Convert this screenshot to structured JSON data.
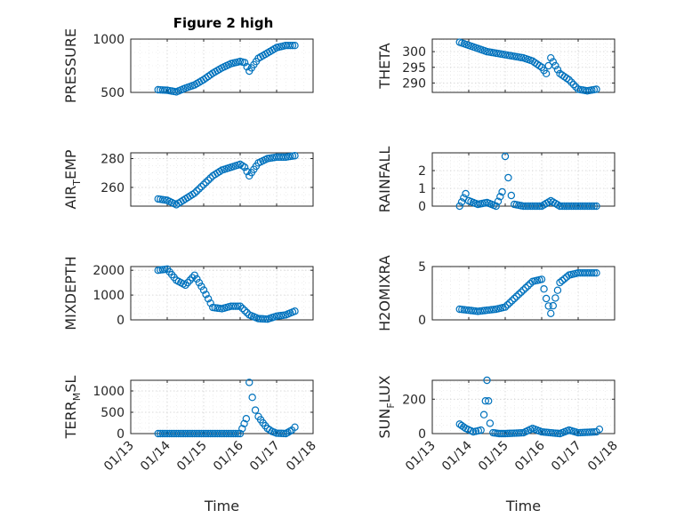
{
  "figure": {
    "title": "Figure 2 high"
  },
  "colors": {
    "marker": "#0072BD",
    "axis": "#262626",
    "grid": "#d0d0d0"
  },
  "chart_data": [
    {
      "type": "scatter",
      "ylabel_parts": [
        "PRESSURE"
      ],
      "xlabel": "",
      "xlim": [
        "01/13",
        "01/18"
      ],
      "ylim": [
        500,
        1000
      ],
      "yticks": [
        500,
        1000
      ],
      "ytick_labels": [
        "500",
        "1000"
      ],
      "x_ticks": [
        "01/13",
        "01/14",
        "01/15",
        "01/16",
        "01/17",
        "01/18"
      ],
      "show_x_labels": false,
      "grid": true,
      "series": [
        {
          "x": [
            "01/13 18:00",
            "01/14 00:00",
            "01/14 06:00",
            "01/14 12:00",
            "01/14 18:00",
            "01/15 00:00",
            "01/15 06:00",
            "01/15 12:00",
            "01/15 18:00",
            "01/16 00:00",
            "01/16 03:00",
            "01/16 06:00",
            "01/16 12:00",
            "01/16 18:00",
            "01/17 00:00",
            "01/17 06:00",
            "01/17 12:00"
          ],
          "y": [
            525,
            520,
            505,
            540,
            570,
            620,
            680,
            730,
            770,
            790,
            780,
            700,
            820,
            870,
            920,
            940,
            940
          ]
        }
      ]
    },
    {
      "type": "scatter",
      "ylabel_parts": [
        "THETA"
      ],
      "xlabel": "",
      "xlim": [
        "01/13",
        "01/18"
      ],
      "ylim": [
        287,
        304
      ],
      "yticks": [
        290,
        295,
        300
      ],
      "ytick_labels": [
        "290",
        "295",
        "300"
      ],
      "x_ticks": [
        "01/13",
        "01/14",
        "01/15",
        "01/16",
        "01/17",
        "01/18"
      ],
      "show_x_labels": false,
      "grid": true,
      "series": [
        {
          "x": [
            "01/13 18:00",
            "01/14 00:00",
            "01/14 06:00",
            "01/14 12:00",
            "01/14 18:00",
            "01/15 00:00",
            "01/15 06:00",
            "01/15 12:00",
            "01/15 18:00",
            "01/16 00:00",
            "01/16 03:00",
            "01/16 06:00",
            "01/16 12:00",
            "01/16 18:00",
            "01/17 00:00",
            "01/17 06:00",
            "01/17 12:00"
          ],
          "y": [
            303,
            302,
            301,
            300,
            299.5,
            299,
            298.5,
            298,
            297,
            295,
            293,
            298,
            293,
            291,
            288,
            287.5,
            288
          ]
        }
      ]
    },
    {
      "type": "scatter",
      "ylabel_parts": [
        "AIR",
        "T",
        "EMP"
      ],
      "xlabel": "",
      "xlim": [
        "01/13",
        "01/18"
      ],
      "ylim": [
        247,
        284
      ],
      "yticks": [
        260,
        280
      ],
      "ytick_labels": [
        "260",
        "280"
      ],
      "x_ticks": [
        "01/13",
        "01/14",
        "01/15",
        "01/16",
        "01/17",
        "01/18"
      ],
      "show_x_labels": false,
      "grid": true,
      "series": [
        {
          "x": [
            "01/13 18:00",
            "01/14 00:00",
            "01/14 06:00",
            "01/14 12:00",
            "01/14 18:00",
            "01/15 00:00",
            "01/15 06:00",
            "01/15 12:00",
            "01/15 18:00",
            "01/16 00:00",
            "01/16 03:00",
            "01/16 06:00",
            "01/16 12:00",
            "01/16 18:00",
            "01/17 00:00",
            "01/17 06:00",
            "01/17 12:00"
          ],
          "y": [
            252,
            251,
            248,
            252,
            256,
            262,
            268,
            272,
            274,
            276,
            274,
            268,
            277,
            280,
            281,
            281,
            282
          ]
        }
      ]
    },
    {
      "type": "scatter",
      "ylabel_parts": [
        "RAINFALL"
      ],
      "xlabel": "",
      "xlim": [
        "01/13",
        "01/18"
      ],
      "ylim": [
        0,
        3
      ],
      "yticks": [
        0,
        1,
        2
      ],
      "ytick_labels": [
        "0",
        "1",
        "2"
      ],
      "x_ticks": [
        "01/13",
        "01/14",
        "01/15",
        "01/16",
        "01/17",
        "01/18"
      ],
      "show_x_labels": false,
      "grid": true,
      "series": [
        {
          "x": [
            "01/13 18:00",
            "01/13 22:00",
            "01/14 00:00",
            "01/14 06:00",
            "01/14 12:00",
            "01/14 18:00",
            "01/14 22:00",
            "01/15 00:00",
            "01/15 02:00",
            "01/15 04:00",
            "01/15 06:00",
            "01/15 12:00",
            "01/15 18:00",
            "01/16 00:00",
            "01/16 06:00",
            "01/16 12:00",
            "01/17 00:00",
            "01/17 12:00"
          ],
          "y": [
            0,
            0.7,
            0.3,
            0.1,
            0.2,
            0,
            0.8,
            2.8,
            1.6,
            0.6,
            0.1,
            0,
            0,
            0,
            0.3,
            0,
            0,
            0
          ]
        }
      ]
    },
    {
      "type": "scatter",
      "ylabel_parts": [
        "MIXDEPTH"
      ],
      "xlabel": "",
      "xlim": [
        "01/13",
        "01/18"
      ],
      "ylim": [
        0,
        2150
      ],
      "yticks": [
        0,
        1000,
        2000
      ],
      "ytick_labels": [
        "0",
        "1000",
        "2000"
      ],
      "x_ticks": [
        "01/13",
        "01/14",
        "01/15",
        "01/16",
        "01/17",
        "01/18"
      ],
      "show_x_labels": false,
      "grid": true,
      "series": [
        {
          "x": [
            "01/13 18:00",
            "01/14 00:00",
            "01/14 06:00",
            "01/14 12:00",
            "01/14 18:00",
            "01/15 00:00",
            "01/15 06:00",
            "01/15 12:00",
            "01/15 18:00",
            "01/16 00:00",
            "01/16 06:00",
            "01/16 12:00",
            "01/16 18:00",
            "01/17 00:00",
            "01/17 06:00",
            "01/17 12:00"
          ],
          "y": [
            2000,
            2050,
            1600,
            1400,
            1800,
            1200,
            500,
            450,
            550,
            550,
            200,
            50,
            30,
            150,
            200,
            350
          ]
        }
      ]
    },
    {
      "type": "scatter",
      "ylabel_parts": [
        "H2OMIXRA"
      ],
      "xlabel": "",
      "xlim": [
        "01/13",
        "01/18"
      ],
      "ylim": [
        0,
        5
      ],
      "yticks": [
        0,
        5
      ],
      "ytick_labels": [
        "0",
        "5"
      ],
      "x_ticks": [
        "01/13",
        "01/14",
        "01/15",
        "01/16",
        "01/17",
        "01/18"
      ],
      "show_x_labels": false,
      "grid": true,
      "series": [
        {
          "x": [
            "01/13 18:00",
            "01/14 00:00",
            "01/14 06:00",
            "01/14 12:00",
            "01/14 18:00",
            "01/15 00:00",
            "01/15 06:00",
            "01/15 12:00",
            "01/15 18:00",
            "01/16 00:00",
            "01/16 03:00",
            "01/16 06:00",
            "01/16 12:00",
            "01/16 18:00",
            "01/17 00:00",
            "01/17 06:00",
            "01/17 12:00"
          ],
          "y": [
            1.0,
            0.9,
            0.8,
            0.9,
            1.0,
            1.2,
            2.0,
            2.8,
            3.6,
            3.8,
            2.0,
            0.6,
            3.5,
            4.2,
            4.4,
            4.4,
            4.4
          ]
        }
      ]
    },
    {
      "type": "scatter",
      "ylabel_parts": [
        "TERR",
        "M",
        "SL"
      ],
      "xlabel": "Time",
      "xlim": [
        "01/13",
        "01/18"
      ],
      "ylim": [
        0,
        1250
      ],
      "yticks": [
        0,
        500,
        1000
      ],
      "ytick_labels": [
        "0",
        "500",
        "1000"
      ],
      "x_ticks": [
        "01/13",
        "01/14",
        "01/15",
        "01/16",
        "01/17",
        "01/18"
      ],
      "show_x_labels": true,
      "grid": true,
      "series": [
        {
          "x": [
            "01/13 18:00",
            "01/14 00:00",
            "01/14 12:00",
            "01/15 00:00",
            "01/15 12:00",
            "01/16 00:00",
            "01/16 04:00",
            "01/16 06:00",
            "01/16 08:00",
            "01/16 10:00",
            "01/16 12:00",
            "01/16 15:00",
            "01/16 18:00",
            "01/16 21:00",
            "01/17 00:00",
            "01/17 06:00",
            "01/17 10:00",
            "01/17 12:00"
          ],
          "y": [
            0,
            0,
            0,
            0,
            0,
            0,
            350,
            1200,
            850,
            550,
            400,
            250,
            120,
            50,
            10,
            0,
            80,
            150
          ]
        }
      ]
    },
    {
      "type": "scatter",
      "ylabel_parts": [
        "SUN",
        "F",
        "LUX"
      ],
      "xlabel": "Time",
      "xlim": [
        "01/13",
        "01/18"
      ],
      "ylim": [
        0,
        310
      ],
      "yticks": [
        0,
        200
      ],
      "ytick_labels": [
        "0",
        "200"
      ],
      "x_ticks": [
        "01/13",
        "01/14",
        "01/15",
        "01/16",
        "01/17",
        "01/18"
      ],
      "show_x_labels": true,
      "grid": true,
      "series": [
        {
          "x": [
            "01/13 18:00",
            "01/13 22:00",
            "01/14 03:00",
            "01/14 08:00",
            "01/14 10:00",
            "01/14 11:00",
            "01/14 12:00",
            "01/14 13:00",
            "01/14 14:00",
            "01/14 16:00",
            "01/14 20:00",
            "01/15 00:00",
            "01/15 12:00",
            "01/15 18:00",
            "01/16 00:00",
            "01/16 12:00",
            "01/16 18:00",
            "01/17 00:00",
            "01/17 12:00",
            "01/17 14:00"
          ],
          "y": [
            55,
            30,
            10,
            20,
            110,
            190,
            310,
            190,
            60,
            5,
            0,
            0,
            5,
            30,
            10,
            0,
            20,
            5,
            10,
            25
          ]
        }
      ]
    }
  ]
}
